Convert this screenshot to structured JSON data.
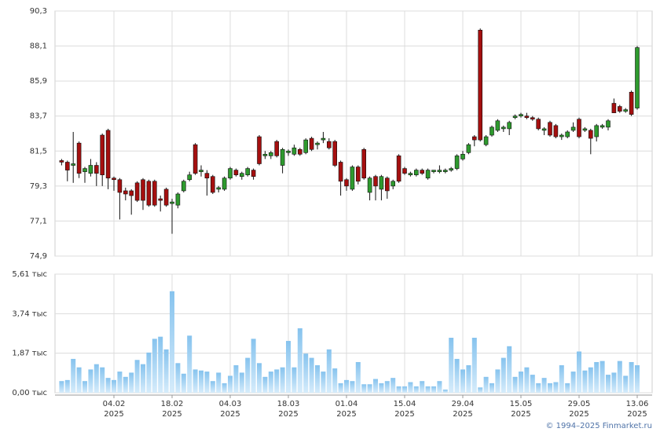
{
  "chart_data": {
    "type": "candlestick",
    "source": "© 1994–2025 Finmarket.ru",
    "x": [
      "2025-01-22",
      "2025-01-23",
      "2025-01-24",
      "2025-01-27",
      "2025-01-28",
      "2025-01-29",
      "2025-01-30",
      "2025-01-31",
      "2025-02-03",
      "2025-02-04",
      "2025-02-05",
      "2025-02-06",
      "2025-02-07",
      "2025-02-10",
      "2025-02-11",
      "2025-02-12",
      "2025-02-13",
      "2025-02-14",
      "2025-02-17",
      "2025-02-18",
      "2025-02-19",
      "2025-02-20",
      "2025-02-21",
      "2025-02-24",
      "2025-02-25",
      "2025-02-26",
      "2025-02-27",
      "2025-02-28",
      "2025-03-03",
      "2025-03-04",
      "2025-03-05",
      "2025-03-06",
      "2025-03-07",
      "2025-03-10",
      "2025-03-11",
      "2025-03-12",
      "2025-03-13",
      "2025-03-14",
      "2025-03-17",
      "2025-03-18",
      "2025-03-19",
      "2025-03-20",
      "2025-03-21",
      "2025-03-24",
      "2025-03-25",
      "2025-03-26",
      "2025-03-27",
      "2025-03-28",
      "2025-03-31",
      "2025-04-01",
      "2025-04-02",
      "2025-04-03",
      "2025-04-04",
      "2025-04-07",
      "2025-04-08",
      "2025-04-09",
      "2025-04-10",
      "2025-04-11",
      "2025-04-14",
      "2025-04-15",
      "2025-04-16",
      "2025-04-17",
      "2025-04-18",
      "2025-04-21",
      "2025-04-22",
      "2025-04-23",
      "2025-04-24",
      "2025-04-25",
      "2025-04-28",
      "2025-04-29",
      "2025-04-30",
      "2025-05-02",
      "2025-05-05",
      "2025-05-06",
      "2025-05-07",
      "2025-05-08",
      "2025-05-12",
      "2025-05-13",
      "2025-05-14",
      "2025-05-15",
      "2025-05-16",
      "2025-05-19",
      "2025-05-20",
      "2025-05-21",
      "2025-05-22",
      "2025-05-23",
      "2025-05-26",
      "2025-05-27",
      "2025-05-28",
      "2025-05-29",
      "2025-05-30",
      "2025-06-02",
      "2025-06-03",
      "2025-06-04",
      "2025-06-05",
      "2025-06-06",
      "2025-06-09",
      "2025-06-10",
      "2025-06-11",
      "2025-06-13"
    ],
    "open": [
      80.9,
      80.8,
      80.6,
      82.0,
      80.2,
      80.1,
      80.6,
      82.5,
      82.8,
      79.8,
      79.7,
      79.0,
      79.0,
      79.5,
      79.7,
      79.6,
      79.6,
      78.5,
      79.1,
      78.2,
      78.1,
      79.0,
      79.7,
      81.9,
      80.2,
      80.1,
      79.9,
      79.1,
      79.1,
      79.8,
      80.3,
      79.9,
      80.0,
      80.3,
      82.4,
      81.2,
      81.2,
      82.1,
      80.6,
      81.4,
      81.3,
      81.6,
      81.4,
      82.3,
      81.9,
      82.2,
      82.1,
      82.1,
      80.8,
      79.7,
      79.1,
      80.5,
      81.6,
      78.9,
      79.9,
      79.1,
      79.8,
      79.3,
      81.2,
      80.4,
      80.0,
      80.0,
      80.3,
      79.8,
      80.2,
      80.2,
      80.2,
      80.3,
      80.4,
      81.0,
      81.4,
      82.4,
      89.1,
      81.9,
      82.5,
      82.8,
      82.9,
      82.9,
      83.6,
      83.7,
      83.7,
      83.6,
      83.5,
      82.8,
      83.3,
      83.1,
      82.4,
      82.4,
      82.8,
      83.5,
      82.8,
      82.8,
      82.4,
      83.0,
      83.0,
      84.5,
      84.3,
      84.0,
      85.2,
      84.2
    ],
    "high": [
      81.0,
      80.9,
      82.7,
      82.1,
      80.5,
      81.0,
      80.8,
      82.6,
      82.9,
      79.9,
      79.8,
      79.2,
      79.1,
      79.6,
      79.8,
      79.7,
      79.7,
      78.7,
      79.2,
      78.5,
      78.9,
      79.7,
      80.2,
      82.0,
      80.6,
      80.3,
      80.0,
      79.3,
      79.9,
      80.5,
      80.4,
      80.2,
      80.5,
      80.4,
      82.5,
      81.5,
      81.5,
      82.2,
      81.7,
      81.6,
      81.9,
      81.7,
      82.3,
      82.4,
      82.1,
      82.7,
      82.3,
      82.2,
      80.9,
      79.8,
      80.6,
      80.6,
      81.7,
      79.9,
      80.0,
      80.0,
      79.9,
      79.7,
      81.3,
      80.5,
      80.2,
      80.4,
      80.4,
      80.4,
      80.3,
      80.6,
      80.4,
      80.5,
      81.3,
      81.5,
      82.0,
      82.5,
      89.2,
      82.5,
      83.1,
      83.5,
      83.1,
      83.4,
      83.8,
      83.9,
      83.9,
      83.7,
      83.6,
      83.0,
      83.4,
      83.2,
      82.6,
      82.8,
      83.3,
      83.6,
      83.0,
      82.9,
      83.2,
      83.2,
      83.5,
      84.8,
      84.4,
      84.2,
      85.3,
      88.1
    ],
    "low": [
      80.6,
      79.6,
      79.5,
      79.8,
      79.5,
      79.9,
      79.3,
      79.3,
      79.1,
      79.0,
      77.2,
      78.4,
      77.5,
      78.3,
      77.8,
      78.0,
      78.0,
      77.7,
      78.0,
      76.3,
      77.9,
      78.9,
      79.6,
      80.0,
      79.9,
      78.7,
      78.8,
      78.9,
      79.0,
      79.7,
      79.9,
      79.7,
      79.9,
      79.7,
      80.6,
      81.0,
      81.0,
      81.1,
      80.1,
      81.2,
      81.2,
      81.2,
      81.3,
      81.5,
      81.6,
      82.0,
      81.6,
      80.5,
      78.7,
      79.0,
      79.0,
      79.4,
      79.7,
      78.4,
      78.4,
      78.4,
      78.5,
      79.1,
      79.5,
      80.0,
      79.9,
      79.9,
      80.0,
      79.7,
      80.1,
      80.1,
      80.1,
      80.2,
      80.3,
      80.9,
      81.3,
      81.8,
      82.1,
      81.8,
      82.4,
      82.7,
      82.7,
      82.5,
      83.5,
      83.6,
      83.5,
      83.4,
      82.8,
      82.5,
      82.4,
      82.3,
      82.2,
      82.3,
      82.7,
      82.3,
      82.7,
      81.3,
      82.1,
      82.9,
      82.8,
      83.9,
      83.9,
      83.9,
      83.7,
      84.1
    ],
    "close": [
      80.8,
      80.3,
      80.7,
      80.1,
      80.4,
      80.6,
      80.1,
      80.0,
      79.8,
      79.7,
      78.9,
      78.8,
      78.7,
      78.4,
      78.4,
      78.1,
      78.1,
      78.4,
      78.1,
      78.3,
      78.8,
      79.6,
      80.0,
      80.1,
      80.3,
      79.8,
      78.9,
      79.2,
      79.8,
      80.4,
      80.0,
      80.1,
      80.4,
      79.9,
      80.7,
      81.3,
      81.4,
      81.2,
      81.6,
      81.5,
      81.7,
      81.3,
      82.2,
      81.6,
      82.0,
      82.3,
      81.7,
      80.6,
      79.6,
      79.3,
      80.5,
      79.6,
      79.8,
      79.8,
      79.3,
      79.9,
      79.0,
      79.6,
      79.6,
      80.1,
      80.1,
      80.3,
      80.1,
      80.3,
      80.3,
      80.3,
      80.3,
      80.4,
      81.2,
      81.3,
      81.9,
      82.2,
      82.2,
      82.4,
      83.0,
      83.4,
      83.0,
      83.3,
      83.7,
      83.8,
      83.6,
      83.5,
      82.9,
      82.9,
      82.5,
      82.4,
      82.5,
      82.7,
      83.0,
      82.4,
      82.9,
      82.3,
      83.1,
      83.1,
      83.4,
      83.9,
      84.0,
      84.1,
      83.8,
      88.0
    ],
    "up_color": "#2e9a2e",
    "down_color": "#a50f0f",
    "ylim": [
      74.9,
      90.3
    ],
    "yticks": [
      {
        "value": 74.9,
        "label": "74,9"
      },
      {
        "value": 77.1,
        "label": "77,1"
      },
      {
        "value": 79.3,
        "label": "79,3"
      },
      {
        "value": 81.5,
        "label": "81,5"
      },
      {
        "value": 83.7,
        "label": "83,7"
      },
      {
        "value": 85.9,
        "label": "85,9"
      },
      {
        "value": 88.1,
        "label": "88,1"
      },
      {
        "value": 90.3,
        "label": "90,3"
      }
    ],
    "volume": [
      0.55,
      0.6,
      1.6,
      1.2,
      0.55,
      1.1,
      1.35,
      1.2,
      0.7,
      0.6,
      1.0,
      0.75,
      0.95,
      1.55,
      1.35,
      1.9,
      2.55,
      2.65,
      2.05,
      4.8,
      1.4,
      0.9,
      2.7,
      1.1,
      1.05,
      1.0,
      0.55,
      0.95,
      0.45,
      0.8,
      1.3,
      0.95,
      1.65,
      2.55,
      1.4,
      0.75,
      1.0,
      1.1,
      1.2,
      2.45,
      1.2,
      3.05,
      1.85,
      1.65,
      1.3,
      1.0,
      2.05,
      1.15,
      0.45,
      0.6,
      0.55,
      1.45,
      0.4,
      0.4,
      0.65,
      0.45,
      0.55,
      0.7,
      0.3,
      0.3,
      0.5,
      0.3,
      0.55,
      0.3,
      0.3,
      0.55,
      0.15,
      2.6,
      1.6,
      1.1,
      1.3,
      2.6,
      0.25,
      0.75,
      0.45,
      1.1,
      1.65,
      2.2,
      0.75,
      1.0,
      1.2,
      0.85,
      0.45,
      0.7,
      0.45,
      0.5,
      1.3,
      0.45,
      1.0,
      1.95,
      1.05,
      1.2,
      1.45,
      1.5,
      0.85,
      0.95,
      1.5,
      0.8,
      1.45,
      1.3
    ],
    "volume_lim": [
      0,
      5.61
    ],
    "volume_ticks": [
      {
        "value": 0,
        "label": "0,00 тыс"
      },
      {
        "value": 1.87,
        "label": "1,87 тыс"
      },
      {
        "value": 3.74,
        "label": "3,74 тыс"
      },
      {
        "value": 5.61,
        "label": "5,61 тыс"
      }
    ],
    "grid": true,
    "xticks": [
      {
        "value": "2025-02-04",
        "label": [
          "04.02",
          "2025"
        ]
      },
      {
        "value": "2025-02-18",
        "label": [
          "18.02",
          "2025"
        ]
      },
      {
        "value": "2025-03-04",
        "label": [
          "04.03",
          "2025"
        ]
      },
      {
        "value": "2025-03-18",
        "label": [
          "18.03",
          "2025"
        ]
      },
      {
        "value": "2025-04-01",
        "label": [
          "01.04",
          "2025"
        ]
      },
      {
        "value": "2025-04-15",
        "label": [
          "15.04",
          "2025"
        ]
      },
      {
        "value": "2025-04-29",
        "label": [
          "29.04",
          "2025"
        ]
      },
      {
        "value": "2025-05-15",
        "label": [
          "15.05",
          "2025"
        ]
      },
      {
        "value": "2025-05-29",
        "label": [
          "29.05",
          "2025"
        ]
      },
      {
        "value": "2025-06-13",
        "label": [
          "13.06",
          "2025"
        ]
      }
    ]
  }
}
